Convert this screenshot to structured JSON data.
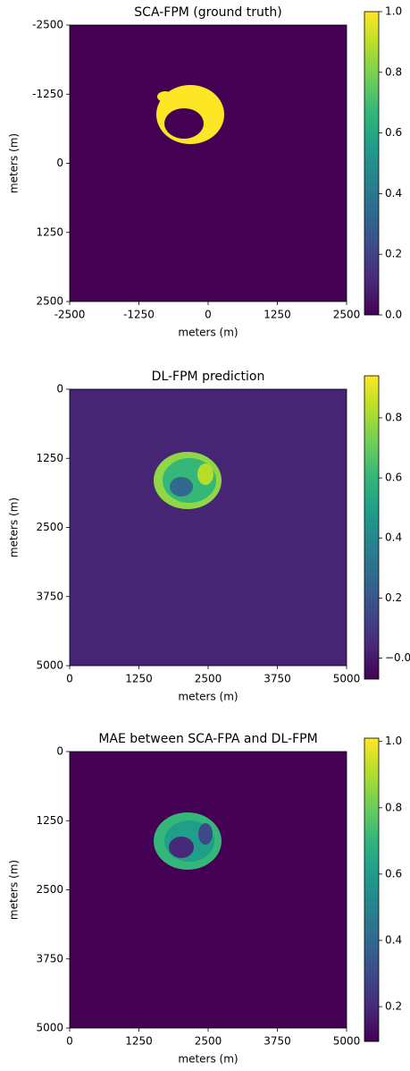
{
  "chart_data": [
    {
      "type": "heatmap",
      "title": "SCA-FPM (ground truth)",
      "x_label": "meters (m)",
      "y_label": "meters (m)",
      "xlim": [
        -2500,
        2500
      ],
      "xticks": [
        -2500,
        -1250,
        0,
        1250,
        2500
      ],
      "ylim": [
        2500,
        -2500
      ],
      "yticks": [
        -2500,
        -1250,
        0,
        1250,
        2500
      ],
      "clim": [
        0,
        1
      ],
      "cticks": [
        {
          "value": 0,
          "label": "0.0"
        },
        0.2,
        0.4,
        0.6,
        0.8,
        {
          "value": 1,
          "label": "1.0"
        }
      ]
    },
    {
      "type": "heatmap",
      "title": "DL-FPM prediction",
      "x_label": "meters (m)",
      "y_label": "meters (m)",
      "xlim": [
        0,
        5000
      ],
      "xticks": [
        0,
        1250,
        2500,
        3750,
        5000
      ],
      "ylim": [
        5000,
        0
      ],
      "yticks": [
        0,
        1250,
        2500,
        3750,
        5000
      ],
      "clim": [
        -0.07,
        0.94
      ],
      "cticks": [
        {
          "value": 0,
          "label": "−0.0"
        },
        0.2,
        0.4,
        0.6,
        0.8
      ]
    },
    {
      "type": "heatmap",
      "title": "MAE between SCA-FPA and DL-FPM",
      "x_label": "meters (m)",
      "y_label": "meters (m)",
      "xlim": [
        0,
        5000
      ],
      "xticks": [
        0,
        1250,
        2500,
        3750,
        5000
      ],
      "ylim": [
        5000,
        0
      ],
      "yticks": [
        0,
        1250,
        2500,
        3750,
        5000
      ],
      "clim": [
        0.095,
        1.01
      ],
      "cticks": [
        0.2,
        0.4,
        0.6,
        0.8,
        {
          "value": 1,
          "label": "1.0"
        }
      ]
    }
  ]
}
